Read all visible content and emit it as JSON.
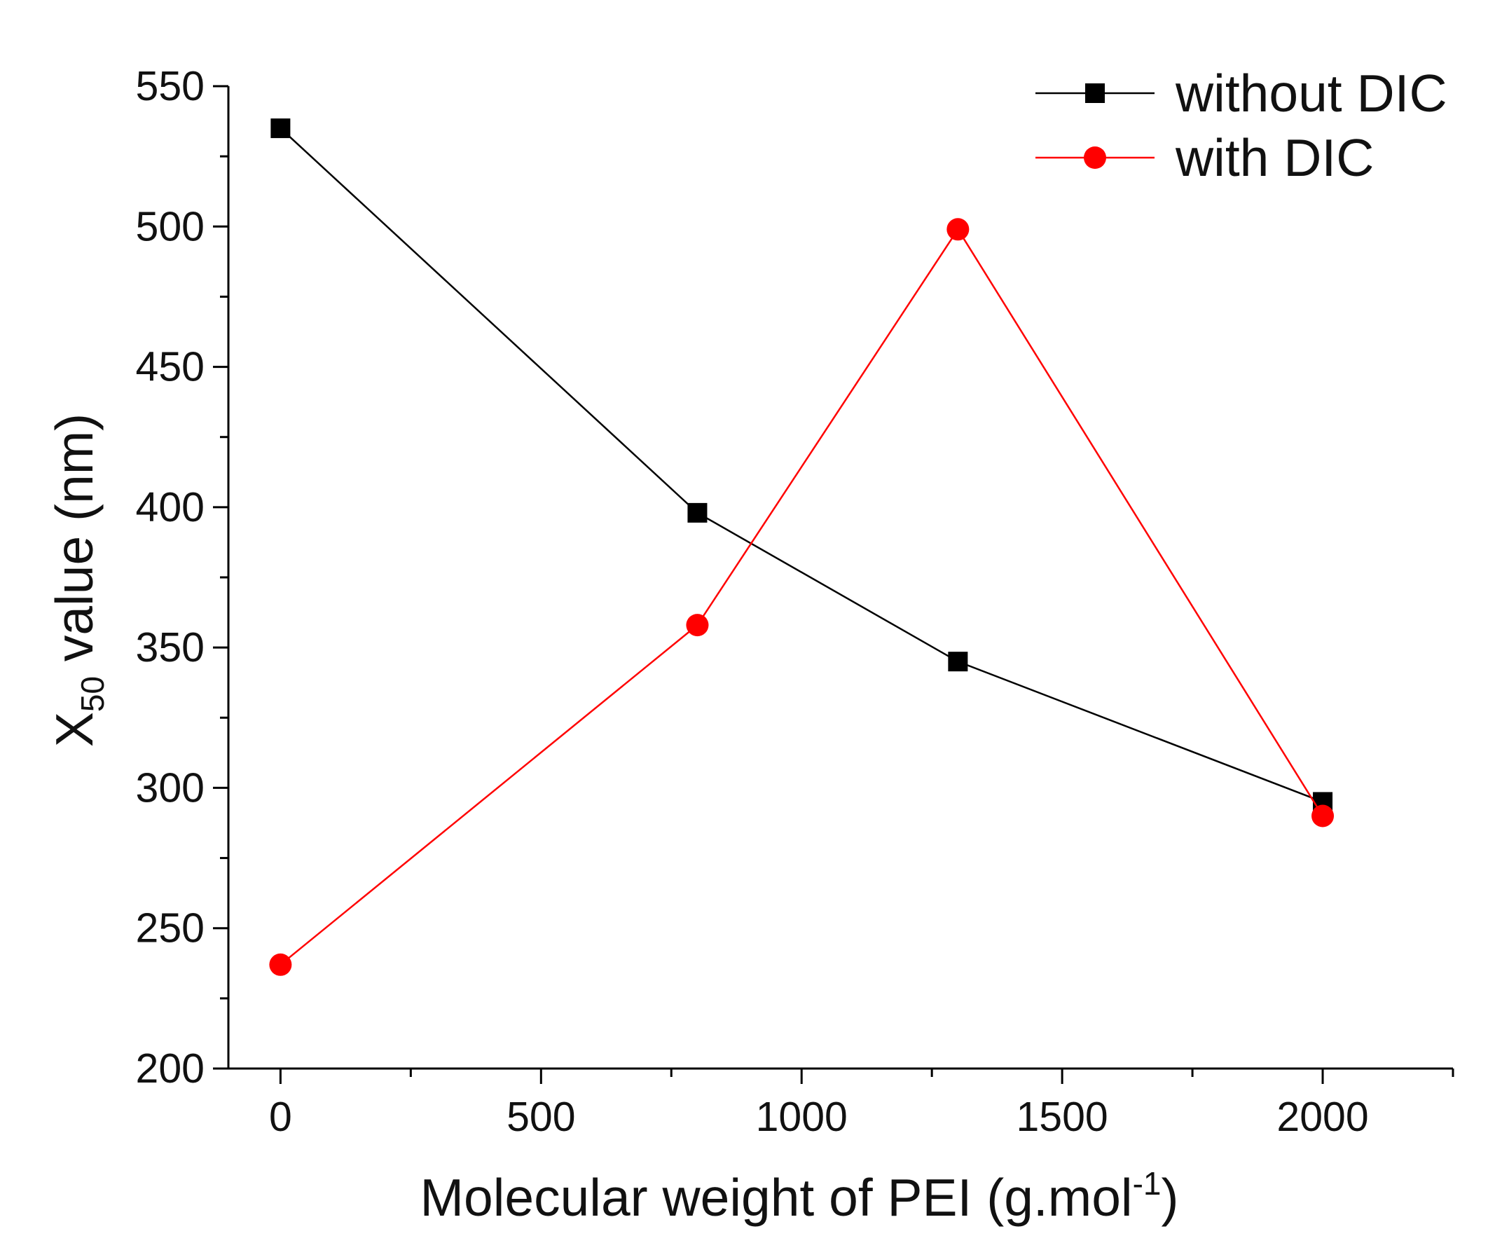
{
  "chart_data": {
    "type": "line",
    "title": "",
    "xlabel": "Molecular weight of PEI (g.mol",
    "xlabel_sup": "-1",
    "xlabel_end": ")",
    "ylabel_main": "X",
    "ylabel_sub": "50",
    "ylabel_rest": " value (nm)",
    "xlim": [
      -100,
      2250
    ],
    "ylim": [
      200,
      550
    ],
    "xticks": [
      0,
      500,
      1000,
      1500,
      2000
    ],
    "xtick_labels": [
      "0",
      "500",
      "1000",
      "1500",
      "2000"
    ],
    "yticks": [
      200,
      250,
      300,
      350,
      400,
      450,
      500,
      550
    ],
    "ytick_labels": [
      "200",
      "250",
      "300",
      "350",
      "400",
      "450",
      "500",
      "550"
    ],
    "legend_position": "top-right",
    "series": [
      {
        "name": "without DIC",
        "color": "#000000",
        "marker": "square",
        "x": [
          0,
          800,
          1300,
          2000
        ],
        "y": [
          535,
          398,
          345,
          295
        ]
      },
      {
        "name": "with DIC",
        "color": "#ff0000",
        "marker": "circle",
        "x": [
          0,
          800,
          1300,
          2000
        ],
        "y": [
          237,
          358,
          499,
          290
        ]
      }
    ]
  }
}
